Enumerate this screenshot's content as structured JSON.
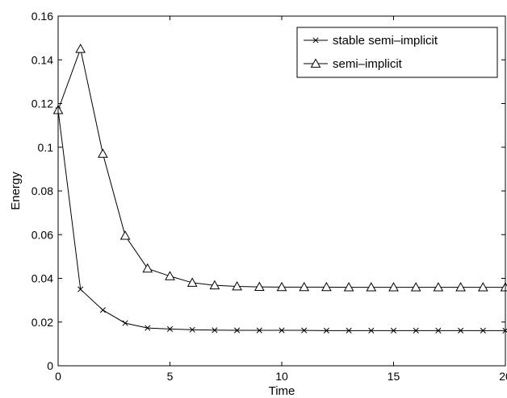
{
  "chart_data": {
    "type": "line",
    "title": "",
    "xlabel": "Time",
    "ylabel": "Energy",
    "xlim": [
      0,
      20
    ],
    "ylim": [
      0,
      0.16
    ],
    "xticks": [
      0,
      5,
      10,
      15,
      20
    ],
    "xtick_labels": [
      "0",
      "5",
      "10",
      "15",
      "20"
    ],
    "yticks": [
      0,
      0.02,
      0.04,
      0.06,
      0.08,
      0.1,
      0.12,
      0.14,
      0.16
    ],
    "ytick_labels": [
      "0",
      "0.02",
      "0.04",
      "0.06",
      "0.08",
      "0.1",
      "0.12",
      "0.14",
      "0.16"
    ],
    "grid": false,
    "legend_position": "top-right",
    "x": [
      0,
      1,
      2,
      3,
      4,
      5,
      6,
      7,
      8,
      9,
      10,
      11,
      12,
      13,
      14,
      15,
      16,
      17,
      18,
      19,
      20
    ],
    "series": [
      {
        "name": "stable semi–implicit",
        "marker": "x",
        "color": "#000000",
        "values": [
          0.117,
          0.035,
          0.0255,
          0.0195,
          0.0173,
          0.0168,
          0.0165,
          0.0163,
          0.0162,
          0.0162,
          0.0162,
          0.0162,
          0.0161,
          0.0161,
          0.0161,
          0.0161,
          0.0161,
          0.0161,
          0.0161,
          0.0161,
          0.0161
        ]
      },
      {
        "name": "semi–implicit",
        "marker": "triangle",
        "color": "#000000",
        "values": [
          0.117,
          0.145,
          0.097,
          0.0595,
          0.0445,
          0.041,
          0.038,
          0.0368,
          0.0363,
          0.0361,
          0.036,
          0.036,
          0.036,
          0.0359,
          0.0359,
          0.0359,
          0.0359,
          0.0359,
          0.0359,
          0.0359,
          0.0359
        ]
      }
    ]
  }
}
